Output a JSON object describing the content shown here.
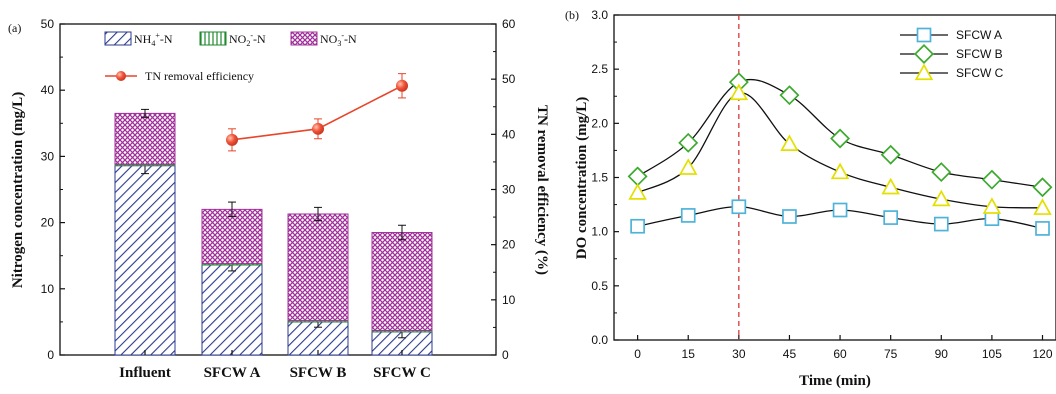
{
  "chart_data": [
    {
      "panel": "(a)",
      "type": "bar",
      "stacked": true,
      "categories": [
        "Influent",
        "SFCW A",
        "SFCW B",
        "SFCW C"
      ],
      "series": [
        {
          "name": "NH4+-N",
          "legend": {
            "base": "NH",
            "sub": "4",
            "sup": "+",
            "tail": "-N"
          },
          "values": [
            28.6,
            13.6,
            5.0,
            3.5
          ],
          "error": [
            1.2,
            0.9,
            0.8,
            0.9
          ],
          "pattern": "diagonal",
          "color": "#2b3a8f"
        },
        {
          "name": "NO2--N",
          "legend": {
            "base": "NO",
            "sub": "2",
            "sup": "-",
            "tail": "-N"
          },
          "values": [
            0.2,
            0.2,
            0.2,
            0.2
          ],
          "pattern": "vertical",
          "color": "#1f8a2e"
        },
        {
          "name": "NO3--N",
          "legend": {
            "base": "NO",
            "sub": "3",
            "sup": "-",
            "tail": "-N"
          },
          "values": [
            7.7,
            8.2,
            16.1,
            14.8
          ],
          "error": [
            0.6,
            1.1,
            1.0,
            1.1
          ],
          "pattern": "crosshatch",
          "color": "#a0309a"
        }
      ],
      "line_series": {
        "name": "TN removal efficiency",
        "categories": [
          "SFCW A",
          "SFCW B",
          "SFCW C"
        ],
        "values": [
          39.0,
          41.0,
          48.8
        ],
        "error": [
          2.0,
          1.8,
          2.2
        ],
        "color": "#e8452a",
        "axis": "right"
      },
      "ylabel": "Nitrogen concentration (mg/L)",
      "ylim": [
        0,
        50
      ],
      "yticks": [
        0,
        10,
        20,
        30,
        40,
        50
      ],
      "y2label": "TN removal efficiency (%)",
      "y2lim": [
        0,
        60
      ],
      "y2ticks": [
        0,
        10,
        20,
        30,
        40,
        50,
        60
      ],
      "legend_position": "top"
    },
    {
      "panel": "(b)",
      "type": "line",
      "x": [
        0,
        15,
        30,
        45,
        60,
        75,
        90,
        105,
        120
      ],
      "series": [
        {
          "name": "SFCW A",
          "values": [
            1.05,
            1.15,
            1.23,
            1.14,
            1.2,
            1.13,
            1.07,
            1.12,
            1.03
          ],
          "marker": "square",
          "color": "#4fb3d9"
        },
        {
          "name": "SFCW B",
          "values": [
            1.51,
            1.82,
            2.38,
            2.26,
            1.86,
            1.71,
            1.55,
            1.48,
            1.41
          ],
          "marker": "diamond",
          "color": "#3caa2e"
        },
        {
          "name": "SFCW C",
          "values": [
            1.36,
            1.59,
            2.28,
            1.81,
            1.55,
            1.41,
            1.3,
            1.23,
            1.22
          ],
          "marker": "triangle",
          "color": "#e3e000"
        }
      ],
      "vline": {
        "x": 30,
        "color": "#d62828",
        "style": "dashed"
      },
      "xlabel": "Time (min)",
      "ylabel": "DO concentration (mg/L)",
      "xlim": [
        -7,
        124
      ],
      "xticks": [
        0,
        15,
        30,
        45,
        60,
        75,
        90,
        105,
        120
      ],
      "ylim": [
        0.0,
        3.0
      ],
      "yticks": [
        "0.0",
        "0.5",
        "1.0",
        "1.5",
        "2.0",
        "2.5",
        "3.0"
      ],
      "legend_position": "top-right"
    }
  ]
}
